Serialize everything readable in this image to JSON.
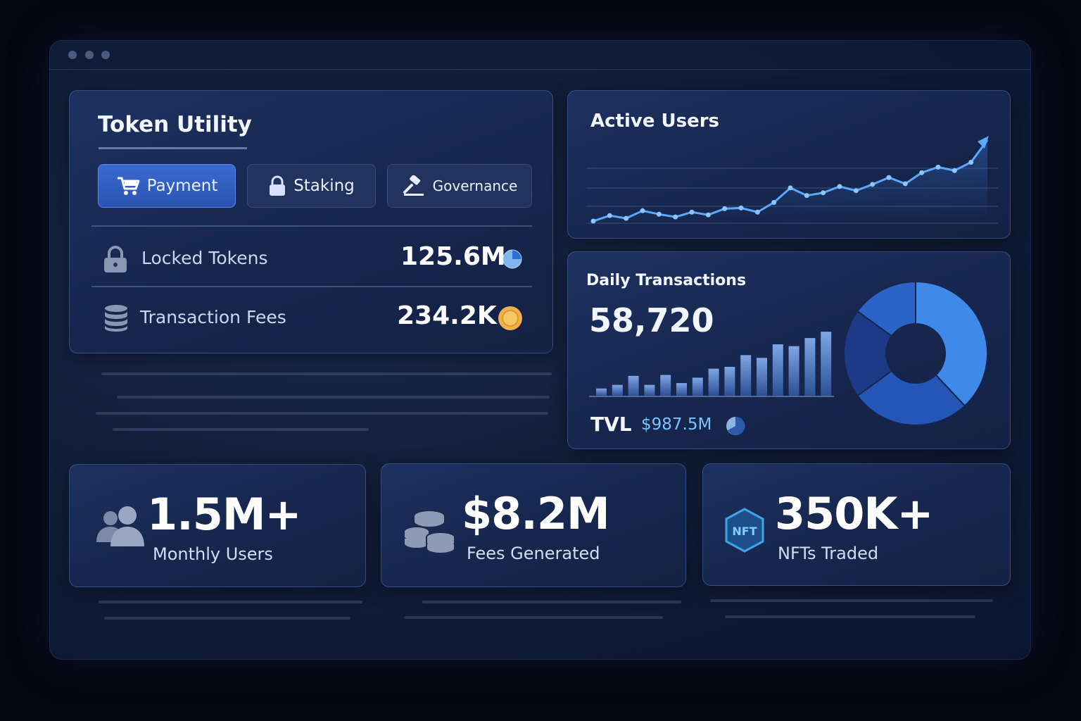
{
  "token_utility": {
    "title": "Token Utility",
    "tabs": [
      {
        "label": "Payment",
        "icon": "cart-icon",
        "active": true
      },
      {
        "label": "Staking",
        "icon": "lock-icon",
        "active": false
      },
      {
        "label": "Governance",
        "icon": "gavel-icon",
        "active": false
      }
    ],
    "rows": [
      {
        "label": "Locked Tokens",
        "value": "125.6M",
        "icon": "lock-icon",
        "badge": "pie-badge-icon"
      },
      {
        "label": "Transaction Fees",
        "value": "234.2K",
        "icon": "database-icon",
        "badge": "coin-icon"
      }
    ]
  },
  "active_users": {
    "title": "Active Users"
  },
  "daily_transactions": {
    "title": "Daily Transactions",
    "value": "58,720",
    "tvl_label": "TVL",
    "tvl_value": "$987.5M"
  },
  "stats": [
    {
      "value": "1.5M+",
      "label": "Monthly Users",
      "icon": "users-icon"
    },
    {
      "value": "$8.2M",
      "label": "Fees Generated",
      "icon": "coins-icon"
    },
    {
      "value": "350K+",
      "label": "NFTs Traded",
      "icon": "nft-icon",
      "icon_text": "NFT"
    }
  ],
  "colors": {
    "accent": "#3a6ad0",
    "line": "#5aa8ff",
    "coin": "#f0b04a",
    "tvl": "#7cc4ff"
  },
  "chart_data": [
    {
      "type": "line",
      "series": [
        {
          "values": [
            3,
            11,
            7,
            18,
            13,
            9,
            16,
            12,
            21,
            22,
            16,
            30,
            51,
            40,
            44,
            53,
            47,
            56,
            66,
            57,
            73,
            81,
            76,
            88,
            120
          ]
        }
      ],
      "grid": true
    },
    {
      "type": "bar",
      "values": [
        8,
        12,
        22,
        12,
        23,
        14,
        20,
        30,
        32,
        45,
        42,
        57,
        55,
        64,
        71,
        89,
        100
      ]
    },
    {
      "type": "pie",
      "values": [
        38,
        27,
        20,
        15
      ],
      "colors": [
        "#3f8ae8",
        "#2456b8",
        "#1c3a86",
        "#2c63c8"
      ]
    }
  ]
}
